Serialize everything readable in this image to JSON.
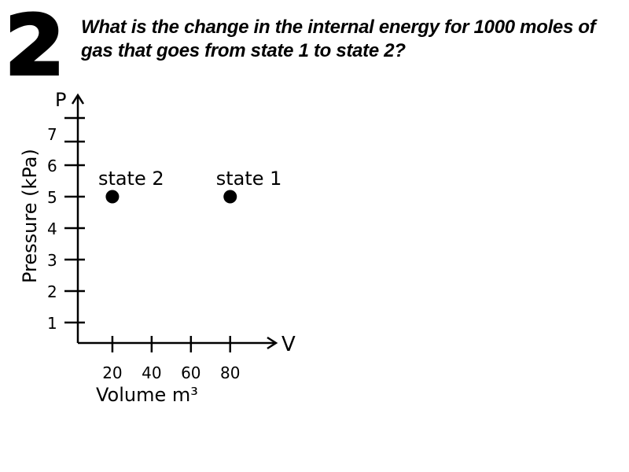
{
  "slide": {
    "number": "2",
    "question": "What is the change in the internal energy for 1000 moles of gas that goes from state 1 to state 2?"
  },
  "chart_data": {
    "type": "scatter",
    "title": "",
    "xlabel": "Volume m³",
    "ylabel": "Pressure (kPa)",
    "x_axis_symbol": "V",
    "y_axis_symbol": "P",
    "x_ticks": [
      "20",
      "40",
      "60",
      "80"
    ],
    "y_ticks": [
      "1",
      "2",
      "3",
      "4",
      "5",
      "6",
      "7"
    ],
    "xlim": [
      0,
      100
    ],
    "ylim": [
      0,
      8
    ],
    "grid": false,
    "points": [
      {
        "label": "state 2",
        "x": 20,
        "y": 5
      },
      {
        "label": "state 1",
        "x": 80,
        "y": 5
      }
    ],
    "marker_color": "#000000"
  }
}
